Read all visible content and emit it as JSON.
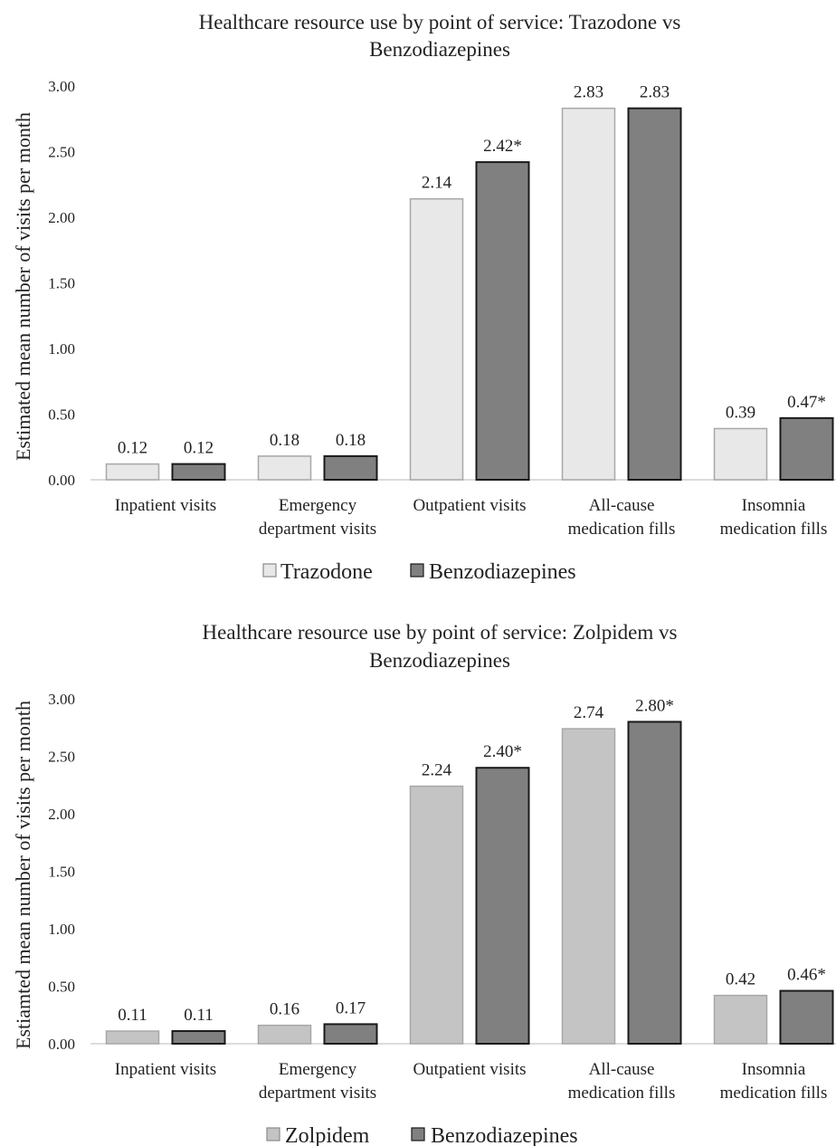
{
  "colors": {
    "trazodone": "#e8e8e8",
    "zolpidem": "#c4c4c4",
    "benzodiazepines": "#808080",
    "axis": "#d0d0d0"
  },
  "chart_data": [
    {
      "type": "bar",
      "title_lines": [
        "Healthcare resource use by point of service: Trazodone vs",
        "Benzodiazepines"
      ],
      "ylabel": "Estimated mean number of visits per month",
      "ylim": [
        0,
        3
      ],
      "yticks": [
        "0.00",
        "0.50",
        "1.00",
        "1.50",
        "2.00",
        "2.50",
        "3.00"
      ],
      "categories": [
        [
          "Inpatient visits"
        ],
        [
          "Emergency",
          "department visits"
        ],
        [
          "Outpatient visits"
        ],
        [
          "All-cause",
          "medication fills"
        ],
        [
          "Insomnia",
          "medication fills"
        ]
      ],
      "series": [
        {
          "name": "Trazodone",
          "values": [
            0.12,
            0.18,
            2.14,
            2.83,
            0.39
          ],
          "labels": [
            "0.12",
            "0.18",
            "2.14",
            "2.83",
            "0.39"
          ]
        },
        {
          "name": "Benzodiazepines",
          "values": [
            0.12,
            0.18,
            2.42,
            2.83,
            0.47
          ],
          "labels": [
            "0.12",
            "0.18",
            "2.42*",
            "2.83",
            "0.47*"
          ]
        }
      ],
      "legend": "bottom",
      "grid": false
    },
    {
      "type": "bar",
      "title_lines": [
        "Healthcare resource use by point of service: Zolpidem vs",
        "Benzodiazepines"
      ],
      "ylabel": "Estiamted mean number of visits per month",
      "ylim": [
        0,
        3
      ],
      "yticks": [
        "0.00",
        "0.50",
        "1.00",
        "1.50",
        "2.00",
        "2.50",
        "3.00"
      ],
      "categories": [
        [
          "Inpatient visits"
        ],
        [
          "Emergency",
          "department visits"
        ],
        [
          "Outpatient visits"
        ],
        [
          "All-cause",
          "medication fills"
        ],
        [
          "Insomnia",
          "medication fills"
        ]
      ],
      "series": [
        {
          "name": "Zolpidem",
          "values": [
            0.11,
            0.16,
            2.24,
            2.74,
            0.42
          ],
          "labels": [
            "0.11",
            "0.16",
            "2.24",
            "2.74",
            "0.42"
          ]
        },
        {
          "name": "Benzodiazepines",
          "values": [
            0.11,
            0.17,
            2.4,
            2.8,
            0.46
          ],
          "labels": [
            "0.11",
            "0.17",
            "2.40*",
            "2.80*",
            "0.46*"
          ]
        }
      ],
      "legend": "bottom",
      "grid": false
    }
  ]
}
